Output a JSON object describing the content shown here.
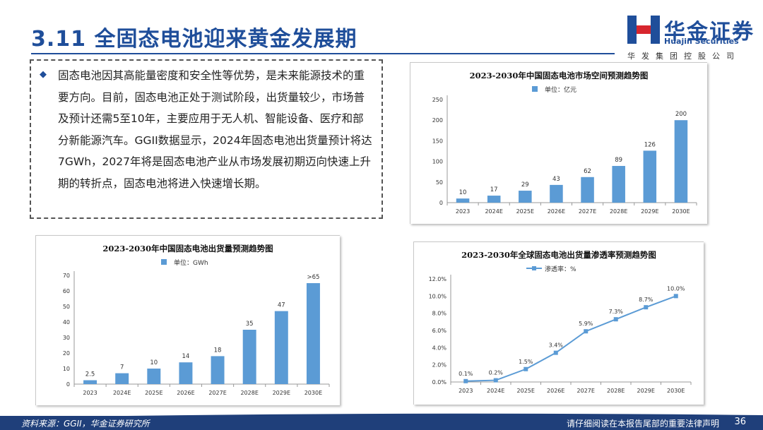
{
  "header": {
    "title": "3.11 全固态电池迎来黄金发展期",
    "logo_cn": "华金证券",
    "logo_en": "Huajin Securities",
    "logo_sub": "华发集团控股公司"
  },
  "main": {
    "paragraph": "固态电池因其高能量密度和安全性等优势，是未来能源技术的重要方向。目前，固态电池正处于测试阶段，出货量较少，市场普及预计还需5至10年，主要应用于无人机、智能设备、医疗和部分新能源汽车。GGII数据显示，2024年固态电池出货量预计将达7GWh，2027年将是固态电池产业从市场发展初期迈向快速上升期的转折点，固态电池将进入快速增长期。"
  },
  "footer": {
    "source": "资料来源：GGII，华金证券研究所",
    "disclaimer": "请仔细阅读在本报告尾部的重要法律声明",
    "page": "36"
  },
  "colors": {
    "brand": "#1f4e9a",
    "bar": "#5b9bd5",
    "footer": "#1f3f7a"
  },
  "chart_data": [
    {
      "type": "bar",
      "title": "2023-2030年中国固态电池市场空间预测趋势图",
      "legend": "单位：亿元",
      "legend_position": "top",
      "categories": [
        "2023",
        "2024E",
        "2025E",
        "2026E",
        "2027E",
        "2028E",
        "2029E",
        "2030E"
      ],
      "values": [
        10,
        17,
        29,
        43,
        62,
        89,
        126,
        200
      ],
      "labels": [
        "10",
        "17",
        "29",
        "43",
        "62",
        "89",
        "126",
        "200"
      ],
      "ylim": [
        0,
        250
      ],
      "yticks": [
        0,
        50,
        100,
        150,
        200,
        250
      ],
      "ytick_labels": [
        "0",
        "50",
        "100",
        "150",
        "200",
        "250"
      ]
    },
    {
      "type": "bar",
      "title": "2023-2030年中国固态电池出货量预测趋势图",
      "legend": "单位：GWh",
      "legend_position": "top",
      "categories": [
        "2023",
        "2024E",
        "2025E",
        "2026E",
        "2027E",
        "2028E",
        "2029E",
        "2030E"
      ],
      "values": [
        2.5,
        7,
        10,
        14,
        18,
        35,
        47,
        65
      ],
      "labels": [
        "2.5",
        "7",
        "10",
        "14",
        "18",
        "35",
        "47",
        ">65"
      ],
      "ylim": [
        0,
        70
      ],
      "yticks": [
        0,
        10,
        20,
        30,
        40,
        50,
        60,
        70
      ],
      "ytick_labels": [
        "0",
        "10",
        "20",
        "30",
        "40",
        "50",
        "60",
        "70"
      ]
    },
    {
      "type": "line",
      "title": "2023-2030年全球固态电池出货量渗透率预测趋势图",
      "legend": "渗透率：%",
      "legend_position": "top",
      "categories": [
        "2023",
        "2024E",
        "2025E",
        "2026E",
        "2027E",
        "2028E",
        "2029E",
        "2030E"
      ],
      "values": [
        0.1,
        0.2,
        1.5,
        3.4,
        5.9,
        7.3,
        8.7,
        10.0
      ],
      "labels": [
        "0.1%",
        "0.2%",
        "1.5%",
        "3.4%",
        "5.9%",
        "7.3%",
        "8.7%",
        "10.0%"
      ],
      "ylim": [
        0,
        12
      ],
      "yticks": [
        0,
        2,
        4,
        6,
        8,
        10,
        12
      ],
      "ytick_labels": [
        "0.0%",
        "2.0%",
        "4.0%",
        "6.0%",
        "8.0%",
        "10.0%",
        "12.0%"
      ]
    }
  ]
}
